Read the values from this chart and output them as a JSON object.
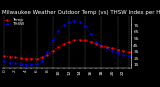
{
  "title": "Milwaukee Weather Outdoor Temp (vs) THSW Index per Hour (Last 24 Hours)",
  "hours": [
    0,
    1,
    2,
    3,
    4,
    5,
    6,
    7,
    8,
    9,
    10,
    11,
    12,
    13,
    14,
    15,
    16,
    17,
    18,
    19,
    20,
    21,
    22,
    23
  ],
  "temp": [
    28,
    27,
    26,
    25,
    24,
    24,
    24,
    26,
    30,
    36,
    42,
    47,
    50,
    52,
    53,
    52,
    50,
    47,
    44,
    42,
    40,
    38,
    36,
    34
  ],
  "thsw": [
    20,
    18,
    17,
    16,
    15,
    15,
    16,
    20,
    35,
    52,
    67,
    76,
    80,
    82,
    80,
    74,
    62,
    50,
    44,
    40,
    36,
    33,
    30,
    28
  ],
  "temp_color": "#ff0000",
  "thsw_color": "#0000ff",
  "ylim": [
    10,
    90
  ],
  "yticks_right": [
    75,
    65,
    55,
    45,
    35,
    25,
    15
  ],
  "grid_positions": [
    0,
    3,
    6,
    9,
    12,
    15,
    18,
    21,
    23
  ],
  "grid_color": "#666666",
  "bg_color": "#000000",
  "plot_bg": "#000000",
  "text_color": "#ffffff",
  "title_fontsize": 4.0,
  "tick_fontsize": 3.2,
  "line_width": 0.7,
  "marker_size": 1.5
}
